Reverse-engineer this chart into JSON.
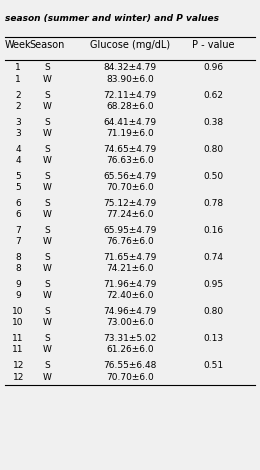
{
  "title_line1": "season (summer and winter) and P values",
  "headers": [
    "Week",
    "Season",
    "Glucose (mg/dL)",
    "P - value"
  ],
  "rows": [
    [
      "1",
      "S",
      "84.32±4.79",
      "0.96"
    ],
    [
      "1",
      "W",
      "83.90±6.0",
      ""
    ],
    [
      "",
      "",
      "",
      ""
    ],
    [
      "2",
      "S",
      "72.11±4.79",
      "0.62"
    ],
    [
      "2",
      "W",
      "68.28±6.0",
      ""
    ],
    [
      "",
      "",
      "",
      ""
    ],
    [
      "3",
      "S",
      "64.41±4.79",
      "0.38"
    ],
    [
      "3",
      "W",
      "71.19±6.0",
      ""
    ],
    [
      "",
      "",
      "",
      ""
    ],
    [
      "4",
      "S",
      "74.65±4.79",
      "0.80"
    ],
    [
      "4",
      "W",
      "76.63±6.0",
      ""
    ],
    [
      "",
      "",
      "",
      ""
    ],
    [
      "5",
      "S",
      "65.56±4.79",
      "0.50"
    ],
    [
      "5",
      "W",
      "70.70±6.0",
      ""
    ],
    [
      "",
      "",
      "",
      ""
    ],
    [
      "6",
      "S",
      "75.12±4.79",
      "0.78"
    ],
    [
      "6",
      "W",
      "77.24±6.0",
      ""
    ],
    [
      "",
      "",
      "",
      ""
    ],
    [
      "7",
      "S",
      "65.95±4.79",
      "0.16"
    ],
    [
      "7",
      "W",
      "76.76±6.0",
      ""
    ],
    [
      "",
      "",
      "",
      ""
    ],
    [
      "8",
      "S",
      "71.65±4.79",
      "0.74"
    ],
    [
      "8",
      "W",
      "74.21±6.0",
      ""
    ],
    [
      "",
      "",
      "",
      ""
    ],
    [
      "9",
      "S",
      "71.96±4.79",
      "0.95"
    ],
    [
      "9",
      "W",
      "72.40±6.0",
      ""
    ],
    [
      "",
      "",
      "",
      ""
    ],
    [
      "10",
      "S",
      "74.96±4.79",
      "0.80"
    ],
    [
      "10",
      "W",
      "73.00±6.0",
      ""
    ],
    [
      "",
      "",
      "",
      ""
    ],
    [
      "11",
      "S",
      "73.31±5.02",
      "0.13"
    ],
    [
      "11",
      "W",
      "61.26±6.0",
      ""
    ],
    [
      "",
      "",
      "",
      ""
    ],
    [
      "12",
      "S",
      "76.55±6.48",
      "0.51"
    ],
    [
      "12",
      "W",
      "70.70±6.0",
      ""
    ]
  ],
  "header_line_color": "#000000",
  "bg_color": "#f0f0f0",
  "text_color": "#000000",
  "font_size": 6.5,
  "header_font_size": 7.0,
  "title_font_size": 6.5
}
